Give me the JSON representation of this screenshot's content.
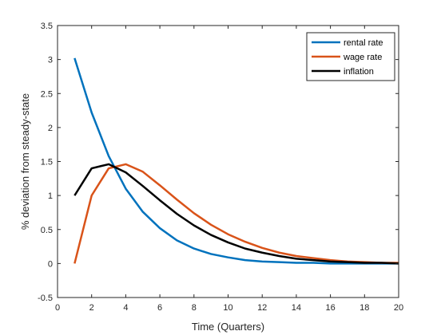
{
  "chart_data": {
    "type": "line",
    "title": "",
    "xlabel": "Time (Quarters)",
    "ylabel": "% deviation from steady-state",
    "xlim": [
      0,
      20
    ],
    "ylim": [
      -0.5,
      3.5
    ],
    "xticks": [
      0,
      2,
      4,
      6,
      8,
      10,
      12,
      14,
      16,
      18,
      20
    ],
    "yticks": [
      -0.5,
      0,
      0.5,
      1,
      1.5,
      2,
      2.5,
      3,
      3.5
    ],
    "xtick_labels": [
      "0",
      "2",
      "4",
      "6",
      "8",
      "10",
      "12",
      "14",
      "16",
      "18",
      "20"
    ],
    "ytick_labels": [
      "-0.5",
      "0",
      "0.5",
      "1",
      "1.5",
      "2",
      "2.5",
      "3",
      "3.5"
    ],
    "grid": false,
    "legend": "top-right",
    "x": [
      1,
      2,
      3,
      4,
      5,
      6,
      7,
      8,
      9,
      10,
      11,
      12,
      13,
      14,
      15,
      16,
      17,
      18,
      19,
      20
    ],
    "series": [
      {
        "name": "rental rate",
        "color": "#0072BD",
        "values": [
          3.02,
          2.22,
          1.58,
          1.1,
          0.76,
          0.52,
          0.34,
          0.22,
          0.14,
          0.09,
          0.05,
          0.03,
          0.02,
          0.01,
          0.01,
          0.0,
          0.0,
          0.0,
          0.0,
          0.0
        ]
      },
      {
        "name": "wage rate",
        "color": "#D95319",
        "values": [
          0.0,
          1.0,
          1.4,
          1.46,
          1.35,
          1.15,
          0.94,
          0.74,
          0.57,
          0.43,
          0.32,
          0.23,
          0.16,
          0.11,
          0.08,
          0.05,
          0.03,
          0.02,
          0.01,
          0.01
        ]
      },
      {
        "name": "inflation",
        "color": "#000000",
        "values": [
          1.0,
          1.4,
          1.46,
          1.34,
          1.14,
          0.93,
          0.73,
          0.56,
          0.42,
          0.31,
          0.22,
          0.16,
          0.11,
          0.07,
          0.05,
          0.03,
          0.02,
          0.01,
          0.01,
          0.0
        ]
      }
    ]
  }
}
